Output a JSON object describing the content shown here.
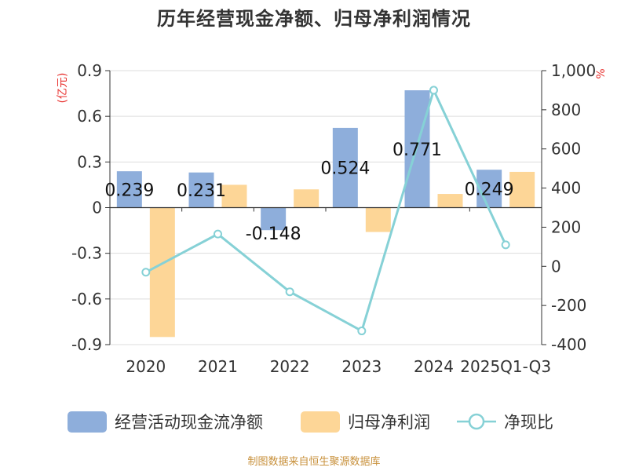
{
  "chart_data": {
    "type": "bar",
    "title": "历年经营现金净额、归母净利润情况",
    "left_axis_unit": "(亿元)",
    "right_axis_unit": "%",
    "categories": [
      "2020",
      "2021",
      "2022",
      "2023",
      "2024",
      "2025Q1-Q3"
    ],
    "left_axis": {
      "ylim": [
        -0.9,
        0.9
      ],
      "ticks": [
        0.9,
        0.6,
        0.3,
        0,
        -0.3,
        -0.6,
        -0.9
      ],
      "tick_labels": [
        "0.9",
        "0.6",
        "0.3",
        "0",
        "-0.3",
        "-0.6",
        "-0.9"
      ]
    },
    "right_axis": {
      "ylim": [
        -400,
        1000
      ],
      "ticks": [
        1000,
        800,
        600,
        400,
        200,
        0,
        -200,
        -400
      ],
      "tick_labels": [
        "1,000",
        "800",
        "600",
        "400",
        "200",
        "0",
        "-200",
        "-400"
      ]
    },
    "grid": true,
    "legend_position": "bottom",
    "series": [
      {
        "name": "经营活动现金流净额",
        "type": "bar",
        "axis": "left",
        "color": "#8eaedb",
        "values": [
          0.239,
          0.231,
          -0.148,
          0.524,
          0.771,
          0.249
        ],
        "data_labels": [
          "0.239",
          "0.231",
          "-0.148",
          "0.524",
          "0.771",
          "0.249"
        ]
      },
      {
        "name": "归母净利润",
        "type": "bar",
        "axis": "left",
        "color": "#fdd697",
        "values": [
          -0.85,
          0.15,
          0.12,
          -0.16,
          0.09,
          0.235
        ]
      },
      {
        "name": "净现比",
        "type": "line",
        "axis": "right",
        "color": "#86d1d6",
        "values": [
          -30,
          165,
          -130,
          -330,
          900,
          110
        ]
      }
    ]
  },
  "source_note": "制图数据来自恒生聚源数据库"
}
